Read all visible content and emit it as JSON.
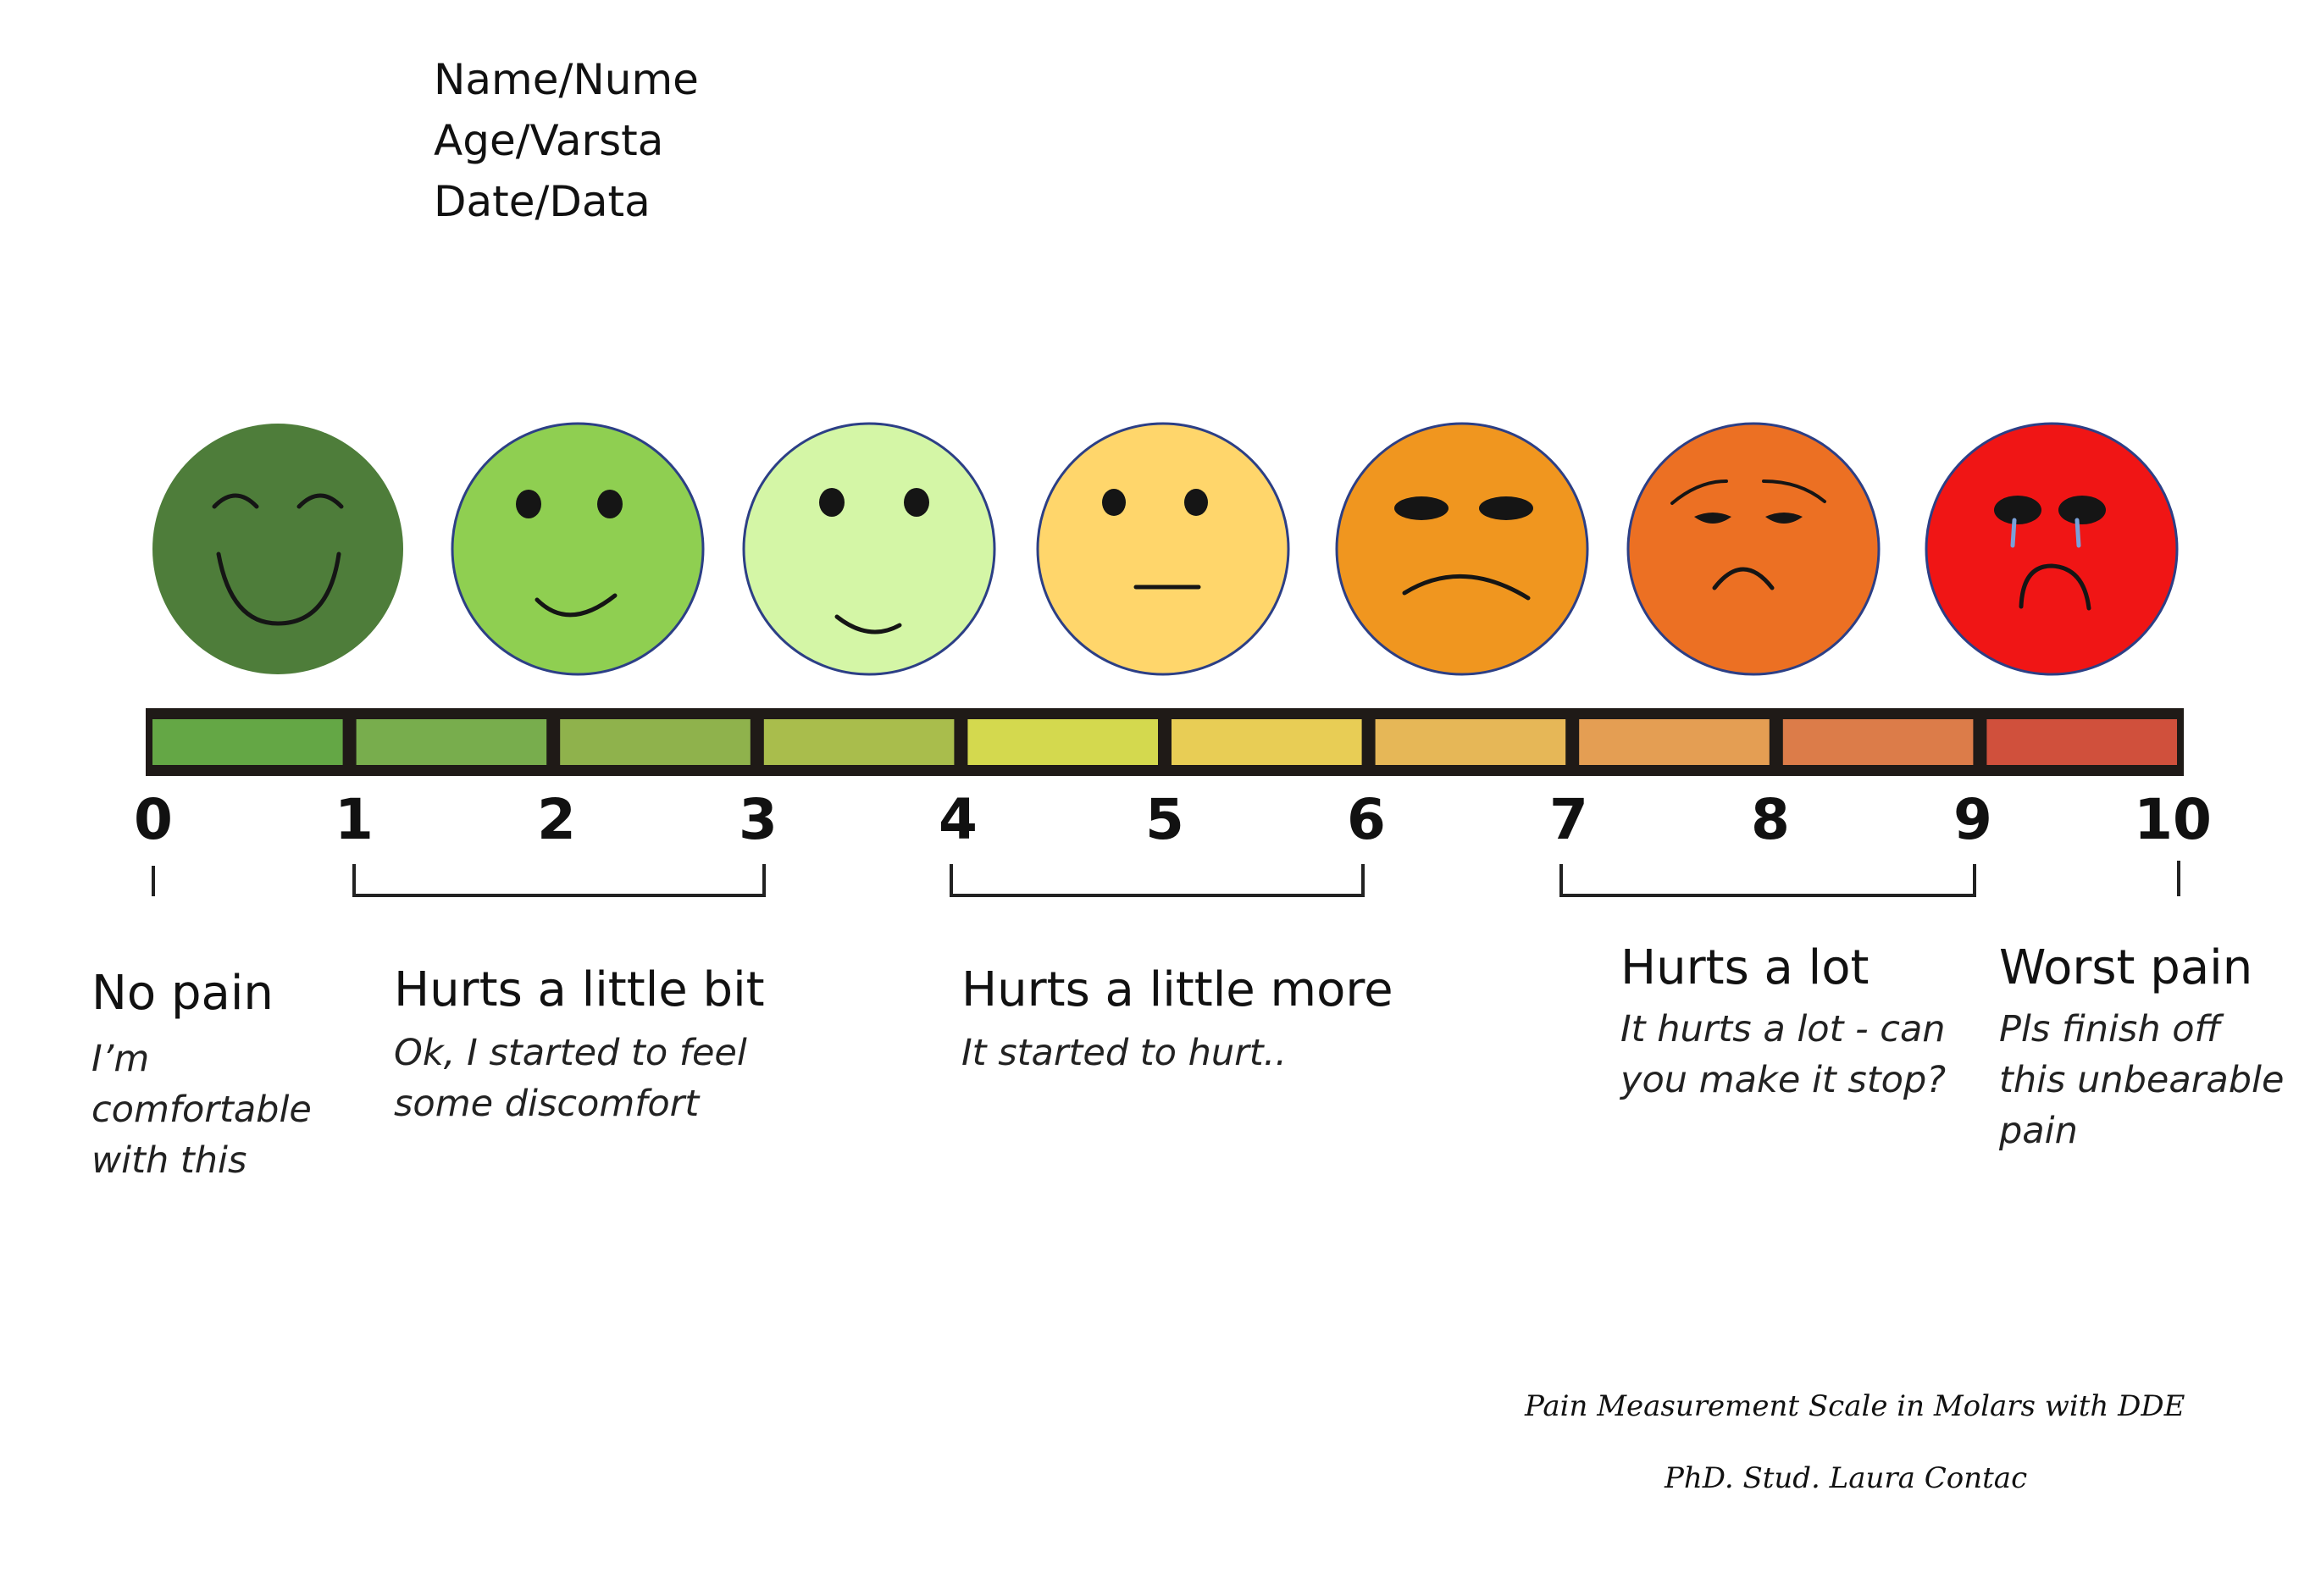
{
  "header": {
    "name": "Name/Nume",
    "age": "Age/Varsta",
    "date": "Date/Data"
  },
  "faces": [
    {
      "icon": "very-happy-face-icon",
      "color": "#4e7d3a",
      "expression": "closed-eyes-big-smile"
    },
    {
      "icon": "happy-face-icon",
      "color": "#8fcf51",
      "expression": "smile"
    },
    {
      "icon": "slight-smile-face-icon",
      "color": "#d4f6a6",
      "expression": "small-smile"
    },
    {
      "icon": "neutral-face-icon",
      "color": "#ffd66b",
      "expression": "neutral"
    },
    {
      "icon": "frown-face-icon",
      "color": "#f0961f",
      "expression": "slight-frown"
    },
    {
      "icon": "sad-face-icon",
      "color": "#ec7023",
      "expression": "sad"
    },
    {
      "icon": "crying-face-icon",
      "color": "#f01515",
      "expression": "crying"
    }
  ],
  "scale": {
    "ticks": [
      "0",
      "1",
      "2",
      "3",
      "4",
      "5",
      "6",
      "7",
      "8",
      "9",
      "10"
    ],
    "segment_colors": [
      "#64a745",
      "#78ad4d",
      "#8fb24c",
      "#a9bd4c",
      "#d4d94e",
      "#e8cd55",
      "#e6b757",
      "#e49e53",
      "#dc7c49",
      "#d0503c"
    ],
    "frame_color": "#1f1a17"
  },
  "labels": [
    {
      "title": "No pain",
      "description": "I’m comfortable with this"
    },
    {
      "title": "Hurts a little bit",
      "description": "Ok, I started to feel some discomfort"
    },
    {
      "title": "Hurts a little more",
      "description": "It started to hurt.."
    },
    {
      "title": "Hurts a lot",
      "description": "It hurts a lot - can you make it stop?"
    },
    {
      "title": "Worst pain",
      "description": "Pls finish off this unbearable pain"
    }
  ],
  "credits": {
    "line1": "Pain Measurement Scale in Molars with DDE",
    "line2": "PhD. Stud. Laura Contac"
  }
}
